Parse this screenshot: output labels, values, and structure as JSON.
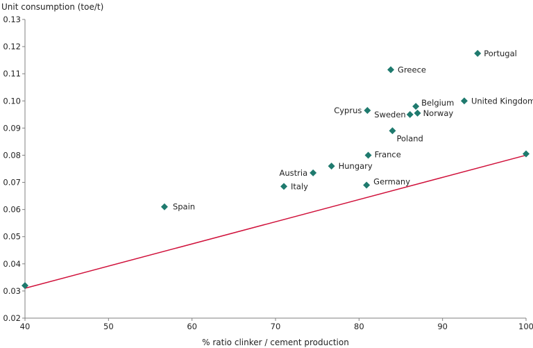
{
  "chart_data": {
    "type": "scatter",
    "title": "",
    "xlabel": "% ratio clinker / cement production",
    "ylabel": "Unit consumption (toe/t)",
    "xlim": [
      40,
      100
    ],
    "ylim": [
      0.02,
      0.13
    ],
    "x_ticks": [
      "40",
      "50",
      "60",
      "70",
      "80",
      "90",
      "100"
    ],
    "y_ticks": [
      "0.02",
      "0.03",
      "0.04",
      "0.05",
      "0.06",
      "0.07",
      "0.08",
      "0.09",
      "0.10",
      "0.11",
      "0.12",
      "0.13"
    ],
    "grid": false,
    "legend": "none",
    "marker_color": "#1f7a6e",
    "line_color": "#d0103a",
    "points": [
      {
        "label": "",
        "x": 40,
        "y": 0.032
      },
      {
        "label": "Spain",
        "x": 56.7,
        "y": 0.061
      },
      {
        "label": "Italy",
        "x": 71.0,
        "y": 0.0685
      },
      {
        "label": "Austria",
        "x": 74.5,
        "y": 0.0735
      },
      {
        "label": "Hungary",
        "x": 76.7,
        "y": 0.076
      },
      {
        "label": "Germany",
        "x": 80.9,
        "y": 0.069
      },
      {
        "label": "France",
        "x": 81.1,
        "y": 0.08
      },
      {
        "label": "Cyprus",
        "x": 81.0,
        "y": 0.0965
      },
      {
        "label": "Greece",
        "x": 83.8,
        "y": 0.1115
      },
      {
        "label": "Poland",
        "x": 84.0,
        "y": 0.089
      },
      {
        "label": "Sweden",
        "x": 86.1,
        "y": 0.095
      },
      {
        "label": "Norway",
        "x": 87.0,
        "y": 0.0955
      },
      {
        "label": "Belgium",
        "x": 86.8,
        "y": 0.098
      },
      {
        "label": "United Kingdom",
        "x": 92.6,
        "y": 0.1
      },
      {
        "label": "Portugal",
        "x": 94.2,
        "y": 0.1175
      },
      {
        "label": "",
        "x": 100,
        "y": 0.0805
      }
    ],
    "trendline": {
      "x": [
        40,
        100
      ],
      "y": [
        0.031,
        0.08
      ]
    }
  }
}
